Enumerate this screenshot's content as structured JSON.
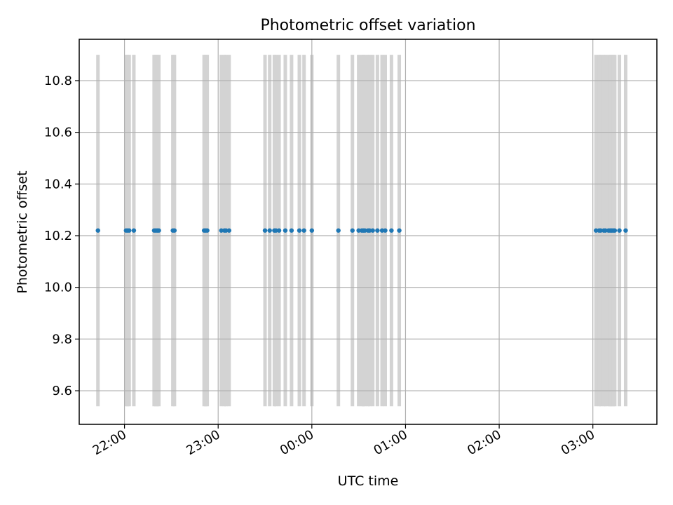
{
  "chart_data": {
    "type": "scatter",
    "title": "Photometric offset variation",
    "xlabel": "UTC time",
    "ylabel": "Photometric offset",
    "grid": true,
    "legend": "none",
    "xlim": [
      "21:31",
      "03:41"
    ],
    "ylim": [
      9.47,
      10.96
    ],
    "x_ticks": [
      "22:00",
      "23:00",
      "00:00",
      "01:00",
      "02:00",
      "03:00"
    ],
    "y_ticks": [
      "9.6",
      "9.8",
      "10.0",
      "10.2",
      "10.4",
      "10.6",
      "10.8"
    ],
    "series": [
      {
        "x": [
          "21:43",
          "22:01",
          "22:02",
          "22:03",
          "22:06",
          "22:19",
          "22:20",
          "22:21",
          "22:22",
          "22:31",
          "22:32",
          "22:51",
          "22:52",
          "22:53",
          "23:02",
          "23:04",
          "23:05",
          "23:07",
          "23:30",
          "23:33",
          "23:36",
          "23:37",
          "23:39",
          "23:43",
          "23:47",
          "23:52",
          "23:55",
          "00:00",
          "00:17",
          "00:26",
          "00:30",
          "00:32",
          "00:33",
          "00:34",
          "00:36",
          "00:37",
          "00:39",
          "00:42",
          "00:45",
          "00:47",
          "00:51",
          "00:56",
          "03:02",
          "03:04",
          "03:05",
          "03:07",
          "03:08",
          "03:10",
          "03:11",
          "03:12",
          "03:13",
          "03:14",
          "03:17",
          "03:21"
        ],
        "y": [
          10.22,
          10.22,
          10.22,
          10.22,
          10.22,
          10.22,
          10.22,
          10.22,
          10.22,
          10.22,
          10.22,
          10.22,
          10.22,
          10.22,
          10.22,
          10.22,
          10.22,
          10.22,
          10.22,
          10.22,
          10.22,
          10.22,
          10.22,
          10.22,
          10.22,
          10.22,
          10.22,
          10.22,
          10.22,
          10.22,
          10.22,
          10.22,
          10.22,
          10.22,
          10.22,
          10.22,
          10.22,
          10.22,
          10.22,
          10.22,
          10.22,
          10.22,
          10.22,
          10.22,
          10.22,
          10.22,
          10.22,
          10.22,
          10.22,
          10.22,
          10.22,
          10.22,
          10.22,
          10.22
        ],
        "color": "#1f77b4"
      }
    ],
    "error_band": {
      "low": 9.54,
      "high": 10.9,
      "color": "#d3d3d3"
    }
  }
}
